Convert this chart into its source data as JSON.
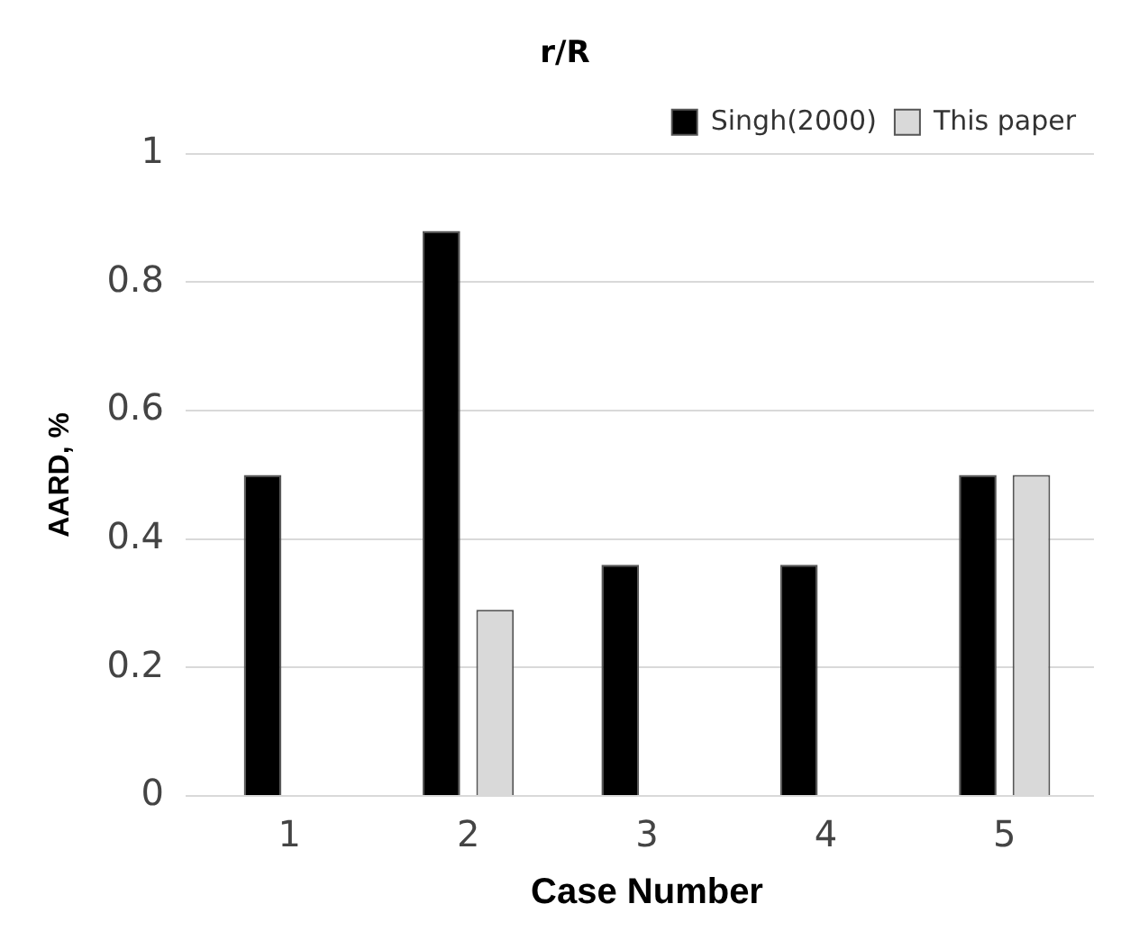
{
  "chart_data": {
    "type": "bar",
    "title": "r/R",
    "xlabel": "Case Number",
    "ylabel": "AARD, %",
    "categories": [
      "1",
      "2",
      "3",
      "4",
      "5"
    ],
    "series": [
      {
        "name": "Singh(2000)",
        "color": "#000000",
        "values": [
          0.5,
          0.88,
          0.36,
          0.36,
          0.5
        ]
      },
      {
        "name": "This paper",
        "color": "#d9d9d9",
        "values": [
          0,
          0.29,
          0,
          0,
          0.5
        ]
      }
    ],
    "ylim": [
      0,
      1
    ],
    "yticks": [
      0,
      0.2,
      0.4,
      0.6,
      0.8,
      1
    ],
    "grid": "y",
    "legend": "top right"
  }
}
